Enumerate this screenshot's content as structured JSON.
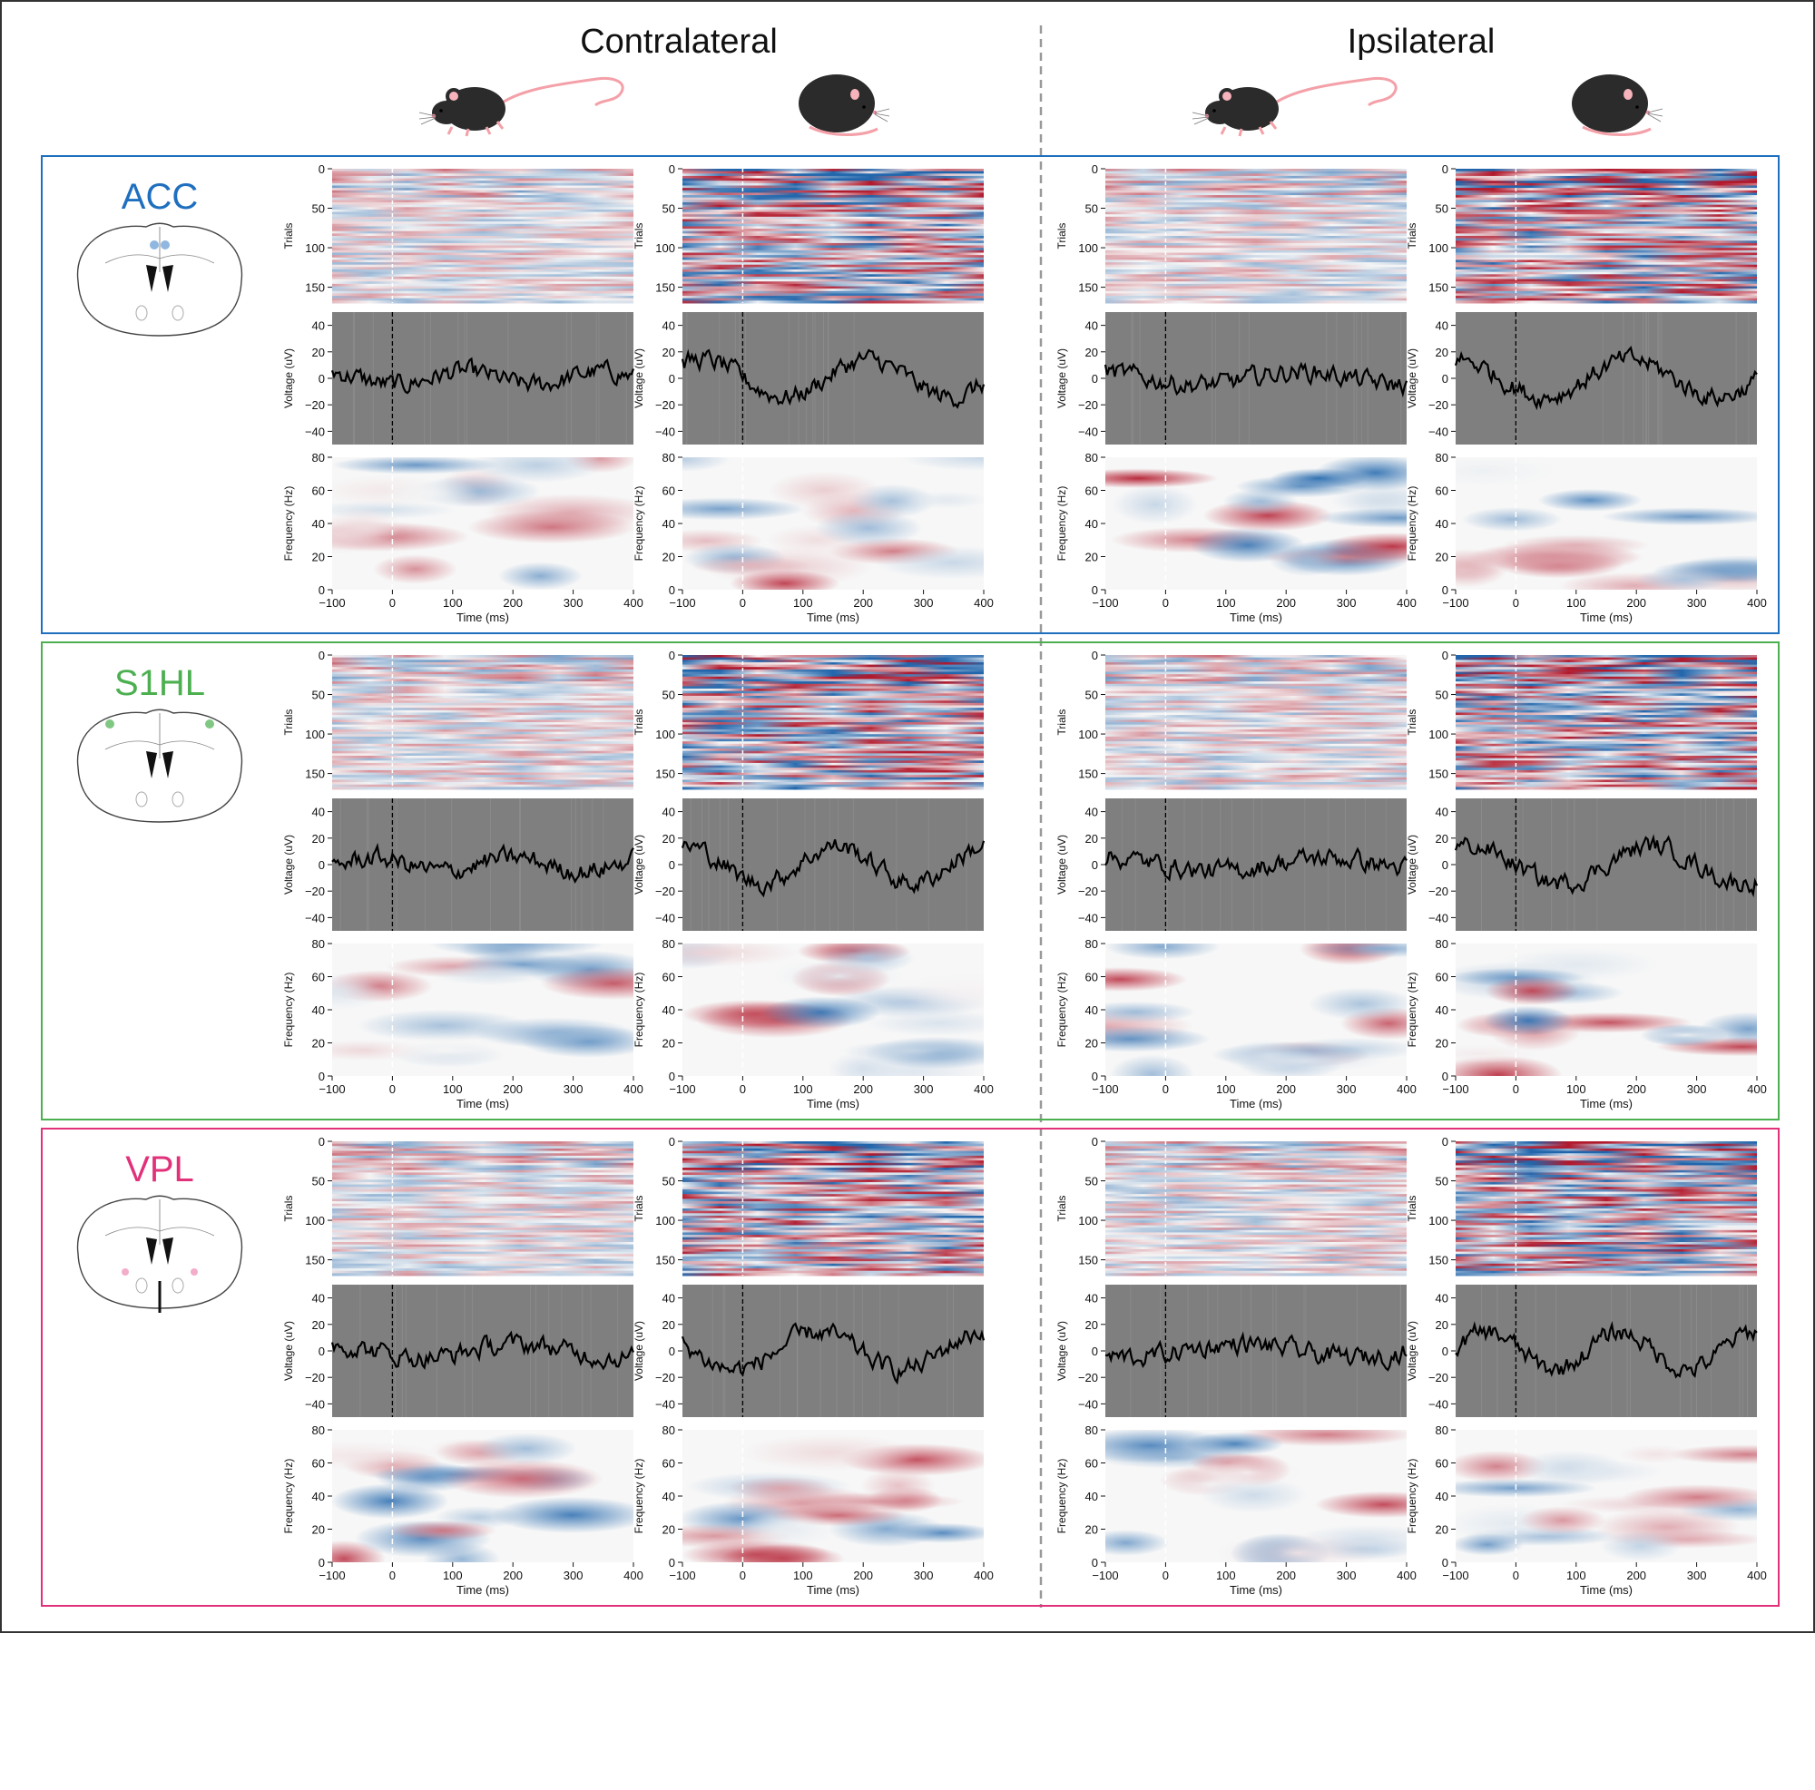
{
  "figure": {
    "columns": [
      {
        "title": "Contralateral"
      },
      {
        "title": "Ipsilateral"
      }
    ],
    "conditions": [
      {
        "icon": "walking-mouse-icon"
      },
      {
        "icon": "resting-mouse-icon"
      }
    ],
    "regions": [
      {
        "name": "ACC",
        "color": "#1f6fbf"
      },
      {
        "name": "S1HL",
        "color": "#4caf50"
      },
      {
        "name": "VPL",
        "color": "#e0317a"
      }
    ],
    "colors": {
      "outer_border": "#333333",
      "divider": "#999999",
      "trace_panel_bg": "#7f7f7f",
      "heatmap_positive": "#b2182b",
      "heatmap_negative": "#2166ac"
    }
  },
  "chart_data": [
    {
      "type": "heatmap",
      "role": "trials",
      "ylabel": "Trials",
      "yticks": [
        0,
        50,
        100,
        150
      ],
      "ylim": [
        0,
        170
      ],
      "xlim": [
        -100,
        400
      ],
      "stimulus_marker_x": 0
    },
    {
      "type": "line",
      "role": "voltage",
      "ylabel": "Voltage (uV)",
      "yticks": [
        40,
        20,
        0,
        -20,
        -40
      ],
      "ylim": [
        -50,
        50
      ],
      "xlim": [
        -100,
        400
      ],
      "stimulus_marker_x": 0,
      "grid": false
    },
    {
      "type": "heatmap",
      "role": "spectrogram",
      "ylabel": "Frequency (Hz)",
      "yticks": [
        80,
        60,
        40,
        20,
        0
      ],
      "ylim": [
        0,
        80
      ],
      "xlabel": "Time (ms)",
      "xticks": [
        "−100",
        "0",
        "100",
        "200",
        "300",
        "400"
      ],
      "xlim": [
        -100,
        400
      ],
      "stimulus_marker_x": 0
    }
  ]
}
